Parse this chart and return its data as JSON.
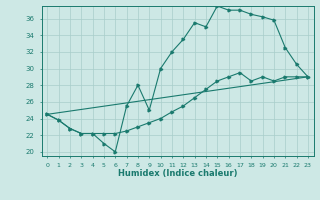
{
  "xlabel": "Humidex (Indice chaleur)",
  "background_color": "#cde8e5",
  "grid_color": "#a8ceca",
  "line_color": "#1a7a6e",
  "xlim": [
    -0.5,
    23.5
  ],
  "ylim": [
    19.5,
    37.5
  ],
  "xticks": [
    0,
    1,
    2,
    3,
    4,
    5,
    6,
    7,
    8,
    9,
    10,
    11,
    12,
    13,
    14,
    15,
    16,
    17,
    18,
    19,
    20,
    21,
    22,
    23
  ],
  "yticks": [
    20,
    22,
    24,
    26,
    28,
    30,
    32,
    34,
    36
  ],
  "line1_x": [
    0,
    1,
    2,
    3,
    4,
    5,
    6,
    7,
    8,
    9,
    10,
    11,
    12,
    13,
    14,
    15,
    16,
    17,
    18,
    19,
    20,
    21,
    22,
    23
  ],
  "line1_y": [
    24.5,
    23.8,
    22.8,
    22.2,
    22.2,
    21.0,
    20.0,
    25.5,
    28.0,
    25.0,
    30.0,
    32.0,
    33.5,
    35.5,
    35.0,
    37.5,
    37.0,
    37.0,
    36.5,
    36.2,
    35.8,
    32.5,
    30.5,
    29.0
  ],
  "line2_x": [
    0,
    1,
    2,
    3,
    4,
    5,
    6,
    7,
    8,
    9,
    10,
    11,
    12,
    13,
    14,
    15,
    16,
    17,
    18,
    19,
    20,
    21,
    22,
    23
  ],
  "line2_y": [
    24.5,
    23.8,
    22.8,
    22.2,
    22.2,
    22.2,
    22.2,
    22.5,
    23.0,
    23.5,
    24.0,
    24.8,
    25.5,
    26.5,
    27.5,
    28.5,
    29.0,
    29.5,
    28.5,
    29.0,
    28.5,
    29.0,
    29.0,
    29.0
  ],
  "line3_x": [
    0,
    23
  ],
  "line3_y": [
    24.5,
    29.0
  ]
}
